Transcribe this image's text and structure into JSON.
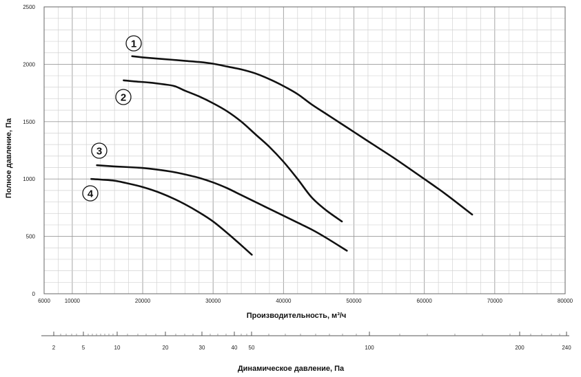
{
  "chart_data": {
    "type": "line",
    "title": "",
    "xlabel": "Производительность, м³/ч",
    "ylabel": "Полное давление, Па",
    "xlim": [
      6000,
      80000
    ],
    "ylim": [
      0,
      2500
    ],
    "x_ticks": [
      6000,
      10000,
      20000,
      30000,
      40000,
      50000,
      60000,
      70000,
      80000
    ],
    "y_ticks": [
      0,
      500,
      1000,
      1500,
      2000,
      2500
    ],
    "grid": true,
    "series": [
      {
        "name": "1",
        "x": [
          18500,
          20000,
          23000,
          26000,
          28000,
          30000,
          32000,
          34000,
          36000,
          38000,
          40000,
          42000,
          44000,
          46000,
          48000,
          50000,
          53000,
          56000,
          60000,
          63000,
          66800
        ],
        "y": [
          2070,
          2060,
          2045,
          2030,
          2020,
          2005,
          1980,
          1955,
          1920,
          1870,
          1810,
          1740,
          1650,
          1570,
          1490,
          1410,
          1290,
          1170,
          1000,
          870,
          690
        ]
      },
      {
        "name": "2",
        "x": [
          17300,
          19000,
          21000,
          23000,
          24500,
          26000,
          28000,
          30000,
          32000,
          34000,
          36000,
          38000,
          40000,
          42000,
          44000,
          46000,
          48300
        ],
        "y": [
          1860,
          1850,
          1840,
          1825,
          1810,
          1770,
          1720,
          1660,
          1590,
          1500,
          1390,
          1280,
          1150,
          1000,
          840,
          730,
          630
        ]
      },
      {
        "name": "3",
        "x": [
          13500,
          16000,
          19000,
          21000,
          24000,
          26000,
          28000,
          30000,
          32000,
          34000,
          36000,
          38000,
          40000,
          42000,
          44000,
          46000,
          49000
        ],
        "y": [
          1120,
          1110,
          1100,
          1090,
          1065,
          1040,
          1010,
          970,
          920,
          860,
          800,
          740,
          680,
          620,
          560,
          490,
          375
        ]
      },
      {
        "name": "4",
        "x": [
          12700,
          14000,
          16000,
          18000,
          20000,
          22000,
          24000,
          26000,
          28000,
          30000,
          32000,
          33500,
          35500
        ],
        "y": [
          1000,
          995,
          985,
          960,
          930,
          890,
          840,
          780,
          710,
          630,
          530,
          450,
          340
        ]
      }
    ],
    "curve_labels": [
      "1",
      "2",
      "3",
      "4"
    ],
    "secondary_axis": {
      "label": "Динамическое давление, Па",
      "ticks": [
        "2",
        "5",
        "10",
        "20",
        "30",
        "40",
        "50",
        "100",
        "200",
        "240"
      ]
    }
  }
}
